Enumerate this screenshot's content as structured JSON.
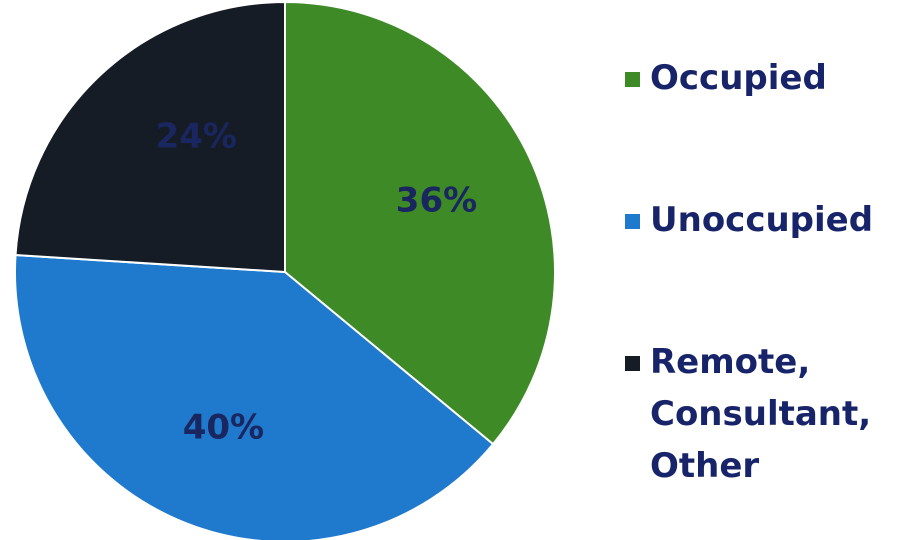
{
  "chart_data": {
    "type": "pie",
    "slices": [
      {
        "label": "Occupied",
        "value": 36,
        "display": "36%",
        "color": "#3e8a26"
      },
      {
        "label": "Unoccupied",
        "value": 40,
        "display": "40%",
        "color": "#1f79cc"
      },
      {
        "label": "Remote, Consultant, Other",
        "value": 24,
        "display": "24%",
        "color": "#161c26"
      }
    ],
    "start_angle": "top (12 o'clock)",
    "direction": "clockwise",
    "legend": {
      "position": "right",
      "items": [
        "Occupied",
        "Unoccupied",
        "Remote,\nConsultant,\nOther"
      ]
    }
  }
}
